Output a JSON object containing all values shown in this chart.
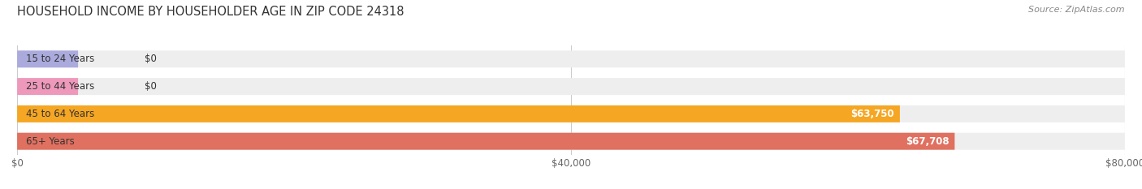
{
  "title": "HOUSEHOLD INCOME BY HOUSEHOLDER AGE IN ZIP CODE 24318",
  "source": "Source: ZipAtlas.com",
  "categories": [
    "15 to 24 Years",
    "25 to 44 Years",
    "45 to 64 Years",
    "65+ Years"
  ],
  "values": [
    0,
    0,
    63750,
    67708
  ],
  "bar_colors": [
    "#aaaadd",
    "#ee99bb",
    "#f5a623",
    "#e07060"
  ],
  "bar_bg_color": "#eeeeee",
  "label_texts": [
    "$0",
    "$0",
    "$63,750",
    "$67,708"
  ],
  "xlim": [
    0,
    80000
  ],
  "xticks": [
    0,
    40000,
    80000
  ],
  "xticklabels": [
    "$0",
    "$40,000",
    "$80,000"
  ],
  "title_fontsize": 10.5,
  "source_fontsize": 8,
  "bar_height": 0.62,
  "background_color": "#ffffff"
}
